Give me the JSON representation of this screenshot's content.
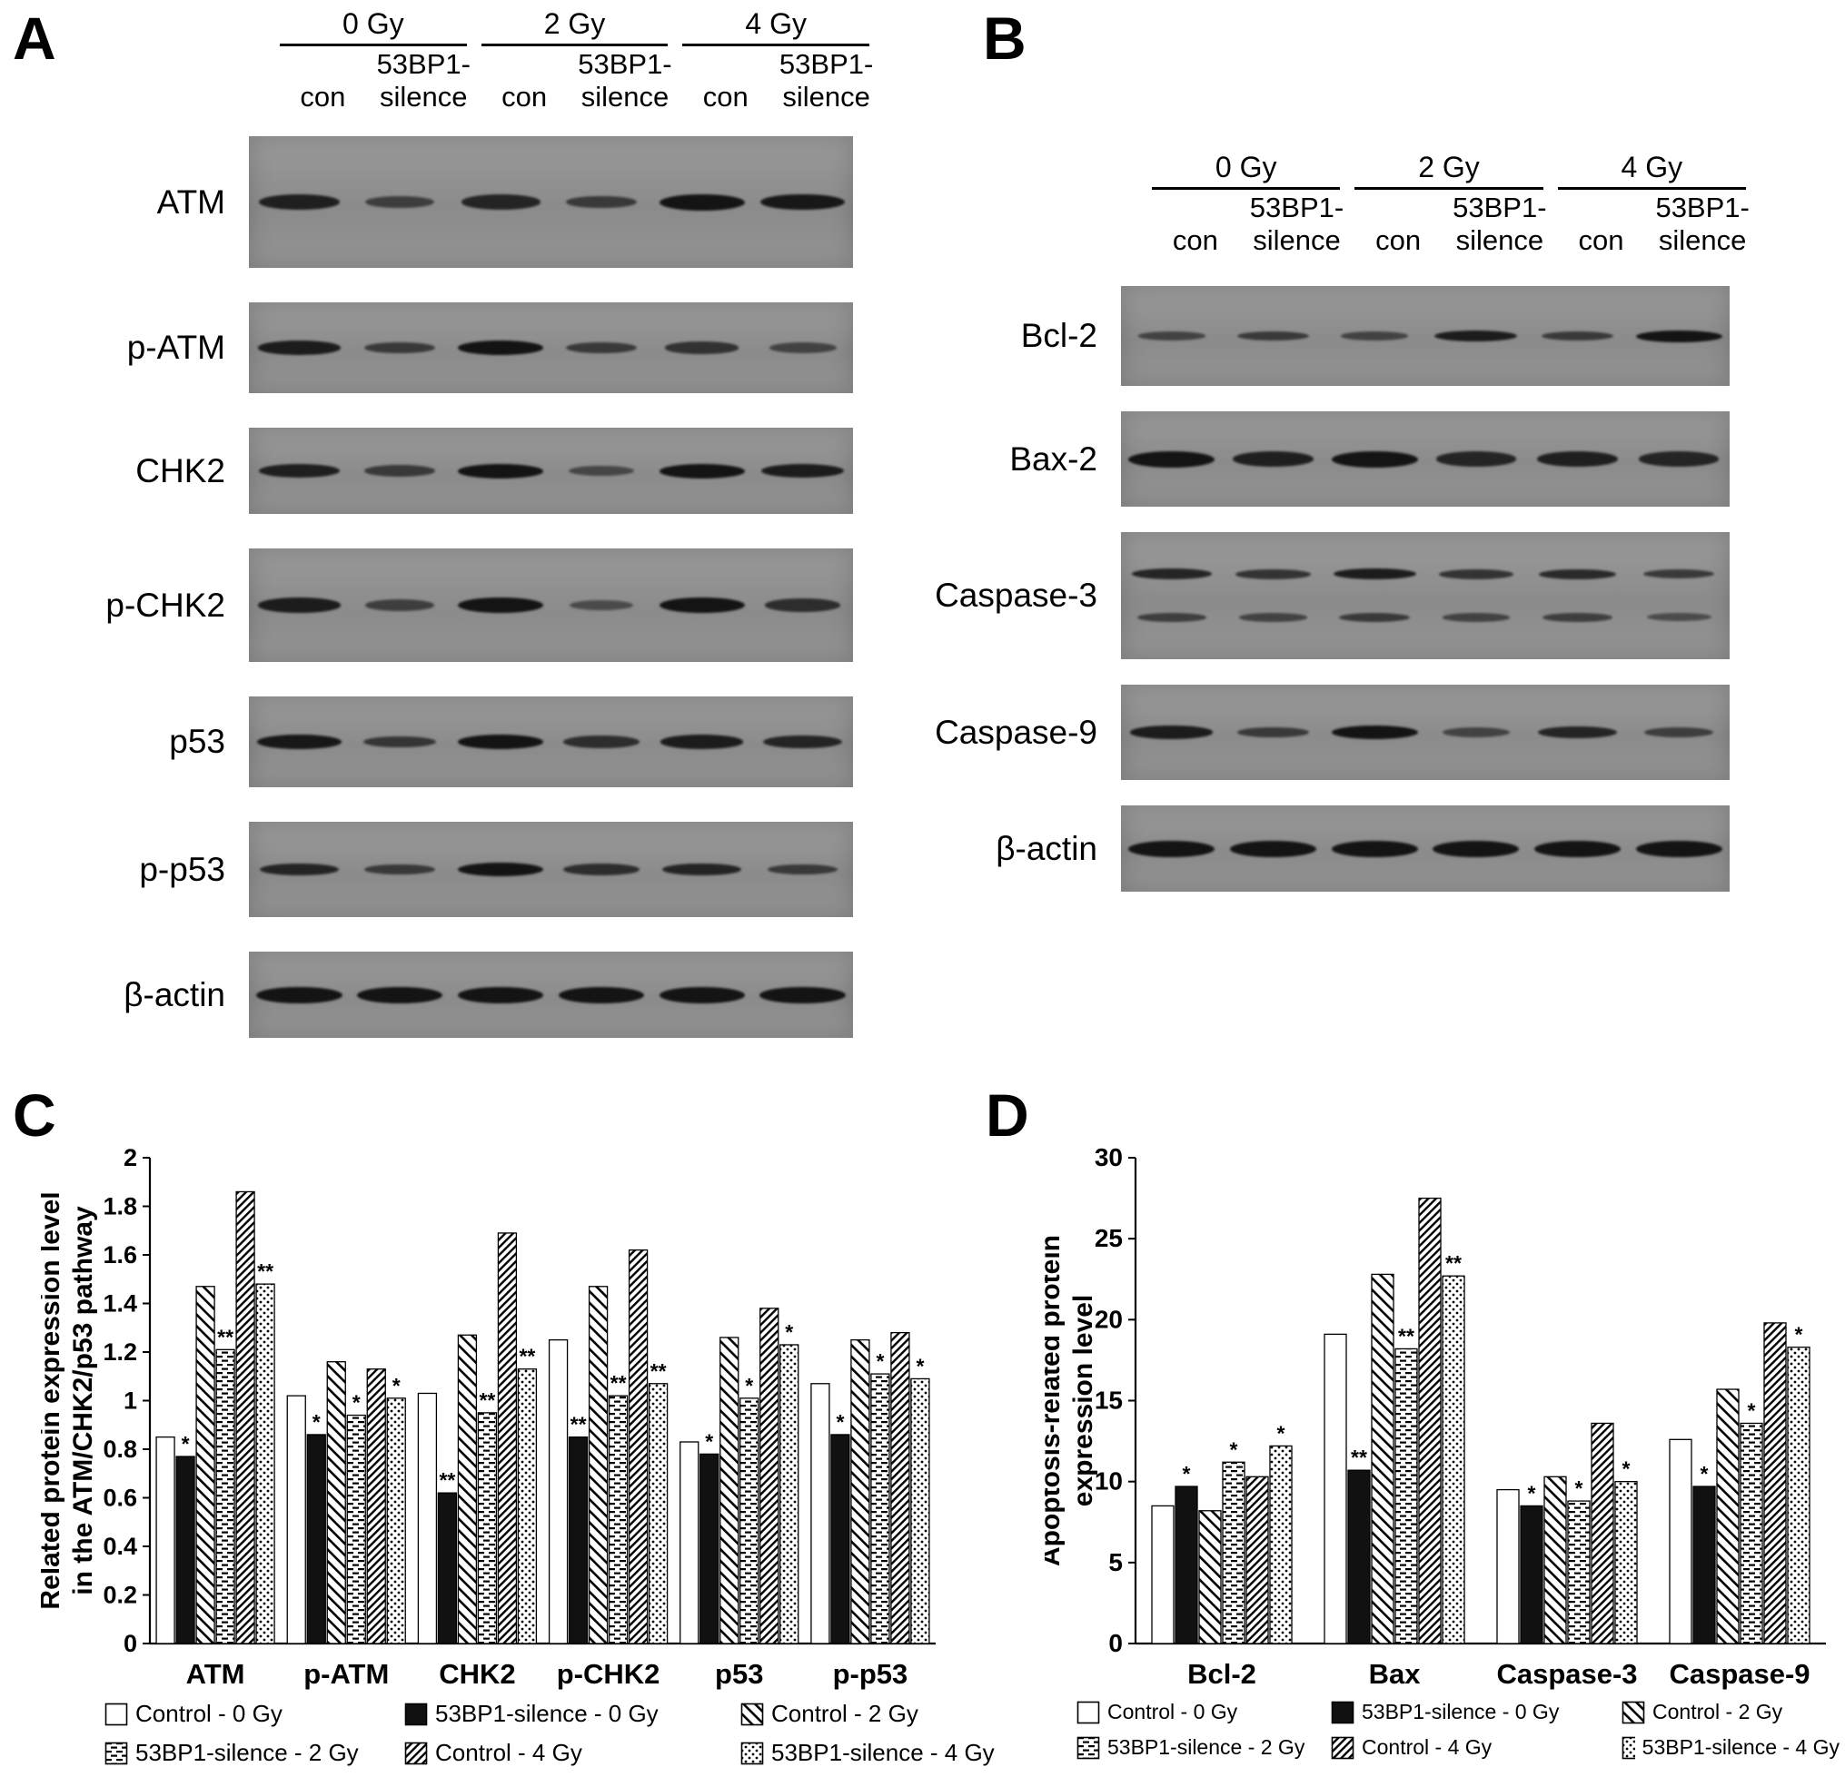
{
  "figure": {
    "panels": {
      "a": {
        "letter": "A",
        "doses": [
          "0 Gy",
          "2 Gy",
          "4 Gy"
        ],
        "group_sub": "53BP1-",
        "lane1": "con",
        "lane2": "silence",
        "rows": [
          {
            "label": "ATM",
            "intensity": [
              0.85,
              0.5,
              0.8,
              0.55,
              1.0,
              0.95
            ],
            "thickness": 18,
            "height": 145
          },
          {
            "label": "p-ATM",
            "intensity": [
              0.9,
              0.55,
              1.0,
              0.55,
              0.65,
              0.45
            ],
            "thickness": 16,
            "height": 100
          },
          {
            "label": "CHK2",
            "intensity": [
              0.85,
              0.55,
              1.0,
              0.4,
              1.0,
              0.9
            ],
            "thickness": 16,
            "height": 95
          },
          {
            "label": "p-CHK2",
            "intensity": [
              0.9,
              0.5,
              1.0,
              0.35,
              1.0,
              0.7
            ],
            "thickness": 17,
            "height": 125
          },
          {
            "label": "p53",
            "intensity": [
              0.95,
              0.6,
              1.0,
              0.7,
              0.9,
              0.8
            ],
            "thickness": 16,
            "height": 100
          },
          {
            "label": "p-p53",
            "intensity": [
              0.8,
              0.55,
              1.0,
              0.7,
              0.8,
              0.55
            ],
            "thickness": 15,
            "height": 105
          },
          {
            "label": "β-actin",
            "intensity": [
              1,
              1,
              1,
              1,
              1,
              1
            ],
            "thickness": 18,
            "height": 95
          }
        ]
      },
      "b": {
        "letter": "B",
        "doses": [
          "0 Gy",
          "2 Gy",
          "4 Gy"
        ],
        "group_sub": "53BP1-",
        "lane1": "con",
        "lane2": "silence",
        "rows": [
          {
            "label": "Bcl-2",
            "intensity": [
              0.45,
              0.55,
              0.45,
              0.9,
              0.55,
              1.0
            ],
            "thickness": 13,
            "height": 110
          },
          {
            "label": "Bax-2",
            "intensity": [
              1.0,
              0.85,
              1.0,
              0.8,
              0.85,
              0.8
            ],
            "thickness": 18,
            "height": 105
          },
          {
            "label": "Caspase-3",
            "intensity": [
              0.8,
              0.65,
              0.9,
              0.65,
              0.75,
              0.55
            ],
            "intensity2": [
              0.5,
              0.45,
              0.55,
              0.45,
              0.5,
              0.35
            ],
            "thickness": 13,
            "height": 140
          },
          {
            "label": "Caspase-9",
            "intensity": [
              0.9,
              0.55,
              1.0,
              0.45,
              0.8,
              0.5
            ],
            "thickness": 15,
            "height": 105
          },
          {
            "label": "β-actin",
            "intensity": [
              1,
              1,
              1,
              1,
              1,
              1
            ],
            "thickness": 18,
            "height": 95
          }
        ]
      },
      "c": {
        "letter": "C"
      },
      "d": {
        "letter": "D"
      }
    },
    "legend": {
      "items": [
        {
          "label": "Control - 0 Gy",
          "pattern": "white"
        },
        {
          "label": "53BP1-silence - 0 Gy",
          "pattern": "black"
        },
        {
          "label": "Control - 2 Gy",
          "pattern": "diag-down"
        },
        {
          "label": "53BP1-silence - 2 Gy",
          "pattern": "hdash"
        },
        {
          "label": "Control - 4 Gy",
          "pattern": "diag-dense"
        },
        {
          "label": "53BP1-silence - 4 Gy",
          "pattern": "dots"
        }
      ]
    },
    "colors": {
      "band": "#141414",
      "blot_background": "#8f8f8f",
      "axis": "#000000",
      "bar_fill_light": "#ffffff",
      "bar_fill_dark": "#111111"
    }
  },
  "chart_data": [
    {
      "id": "C",
      "type": "bar",
      "title": "",
      "ylabel": [
        "Related protein expression level",
        "in the ATM/CHK2/p53 pathway"
      ],
      "xlabel": "",
      "ylim": [
        0,
        2
      ],
      "ytick_step": 0.2,
      "grid": false,
      "legend_position": "bottom",
      "categories": [
        "ATM",
        "p-ATM",
        "CHK2",
        "p-CHK2",
        "p53",
        "p-p53"
      ],
      "series": [
        {
          "name": "Control - 0 Gy",
          "pattern": "white",
          "values": [
            0.85,
            1.02,
            1.03,
            1.25,
            0.83,
            1.07
          ]
        },
        {
          "name": "53BP1-silence - 0 Gy",
          "pattern": "black",
          "values": [
            0.77,
            0.86,
            0.62,
            0.85,
            0.78,
            0.86
          ],
          "sig": [
            "*",
            "*",
            "**",
            "**",
            "*",
            "*"
          ]
        },
        {
          "name": "Control - 2 Gy",
          "pattern": "diag-down",
          "values": [
            1.47,
            1.16,
            1.27,
            1.47,
            1.26,
            1.25
          ]
        },
        {
          "name": "53BP1-silence - 2 Gy",
          "pattern": "hdash",
          "values": [
            1.21,
            0.94,
            0.95,
            1.02,
            1.01,
            1.11
          ],
          "sig": [
            "**",
            "*",
            "**",
            "**",
            "*",
            "*"
          ]
        },
        {
          "name": "Control - 4 Gy",
          "pattern": "diag-dense",
          "values": [
            1.86,
            1.13,
            1.69,
            1.62,
            1.38,
            1.28
          ]
        },
        {
          "name": "53BP1-silence - 4 Gy",
          "pattern": "dots",
          "values": [
            1.48,
            1.01,
            1.13,
            1.07,
            1.23,
            1.09
          ],
          "sig": [
            "**",
            "*",
            "**",
            "**",
            "*",
            "*"
          ]
        }
      ]
    },
    {
      "id": "D",
      "type": "bar",
      "title": "",
      "ylabel": [
        "Apoptosis-related protein",
        "expression level"
      ],
      "xlabel": "",
      "ylim": [
        0,
        30
      ],
      "ytick_step": 5,
      "grid": false,
      "legend_position": "bottom",
      "categories": [
        "Bcl-2",
        "Bax",
        "Caspase-3",
        "Caspase-9"
      ],
      "series": [
        {
          "name": "Control - 0 Gy",
          "pattern": "white",
          "values": [
            8.5,
            19.1,
            9.5,
            12.6
          ]
        },
        {
          "name": "53BP1-silence - 0 Gy",
          "pattern": "black",
          "values": [
            9.7,
            10.7,
            8.5,
            9.7
          ],
          "sig": [
            "*",
            "**",
            "*",
            "*"
          ]
        },
        {
          "name": "Control - 2 Gy",
          "pattern": "diag-down",
          "values": [
            8.2,
            22.8,
            10.3,
            15.7
          ]
        },
        {
          "name": "53BP1-silence - 2 Gy",
          "pattern": "hdash",
          "values": [
            11.2,
            18.2,
            8.8,
            13.6
          ],
          "sig": [
            "*",
            "**",
            "*",
            "*"
          ]
        },
        {
          "name": "Control - 4 Gy",
          "pattern": "diag-dense",
          "values": [
            10.3,
            27.5,
            13.6,
            19.8
          ]
        },
        {
          "name": "53BP1-silence - 4 Gy",
          "pattern": "dots",
          "values": [
            12.2,
            22.7,
            10.0,
            18.3
          ],
          "sig": [
            "*",
            "**",
            "*",
            "*"
          ]
        }
      ]
    }
  ]
}
